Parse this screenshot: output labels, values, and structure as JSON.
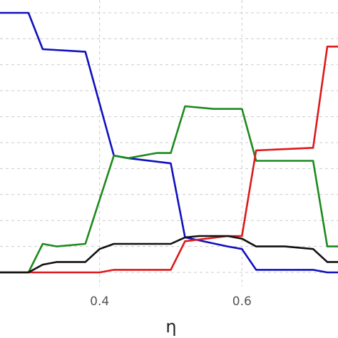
{
  "chart_data": {
    "type": "line",
    "title": "",
    "xlabel": "η",
    "ylabel": "",
    "xlim": [
      0.26,
      0.735
    ],
    "ylim": [
      0,
      1
    ],
    "grid": true,
    "legend": "none",
    "xticks": [
      0.4,
      0.6
    ],
    "xtick_labels": [
      "0.4",
      "0.6"
    ],
    "yticks": [
      0.0,
      0.1,
      0.2,
      0.3,
      0.4,
      0.5,
      0.6,
      0.7,
      0.8,
      0.9,
      1.0
    ],
    "series": [
      {
        "color": "#1010c0",
        "x": [
          0.26,
          0.3,
          0.32,
          0.38,
          0.42,
          0.44,
          0.5,
          0.52,
          0.58,
          0.6,
          0.62,
          0.7,
          0.72,
          0.735
        ],
        "y": [
          1.0,
          1.0,
          0.86,
          0.85,
          0.45,
          0.44,
          0.42,
          0.135,
          0.1,
          0.09,
          0.01,
          0.01,
          0.0,
          0.0
        ]
      },
      {
        "color": "#1e8a1e",
        "x": [
          0.26,
          0.3,
          0.32,
          0.34,
          0.38,
          0.42,
          0.44,
          0.48,
          0.5,
          0.52,
          0.56,
          0.6,
          0.62,
          0.7,
          0.72,
          0.735
        ],
        "y": [
          0.0,
          0.0,
          0.11,
          0.1,
          0.11,
          0.45,
          0.44,
          0.46,
          0.46,
          0.64,
          0.63,
          0.63,
          0.43,
          0.43,
          0.1,
          0.1
        ]
      },
      {
        "color": "#dd1a1a",
        "x": [
          0.26,
          0.4,
          0.42,
          0.5,
          0.52,
          0.58,
          0.6,
          0.62,
          0.7,
          0.72,
          0.735
        ],
        "y": [
          0.0,
          0.0,
          0.01,
          0.01,
          0.12,
          0.14,
          0.14,
          0.47,
          0.48,
          0.87,
          0.87
        ]
      },
      {
        "color": "#111111",
        "x": [
          0.26,
          0.3,
          0.32,
          0.34,
          0.38,
          0.4,
          0.42,
          0.48,
          0.5,
          0.52,
          0.54,
          0.56,
          0.58,
          0.6,
          0.62,
          0.66,
          0.7,
          0.72,
          0.735
        ],
        "y": [
          0.0,
          0.0,
          0.03,
          0.04,
          0.04,
          0.09,
          0.11,
          0.11,
          0.11,
          0.135,
          0.14,
          0.14,
          0.14,
          0.13,
          0.1,
          0.1,
          0.09,
          0.04,
          0.04
        ]
      }
    ]
  }
}
